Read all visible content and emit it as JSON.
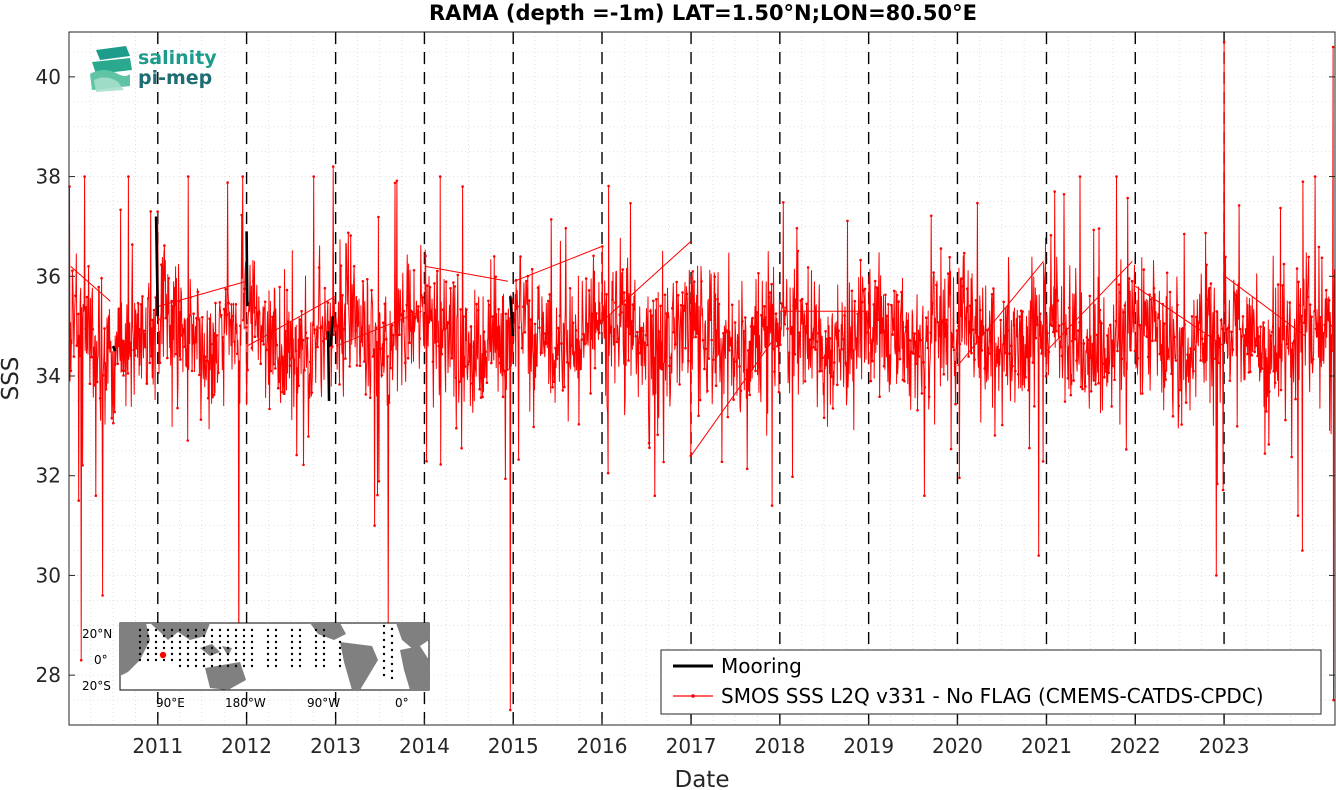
{
  "chart_data": {
    "type": "line",
    "title": "RAMA (depth =-1m) LAT=1.50°N;LON=80.50°E",
    "xlabel": "Date",
    "ylabel": "SSS",
    "xlim": [
      "2010-01-01",
      "2024-04-01"
    ],
    "ylim": [
      27.0,
      40.9
    ],
    "yticks": [
      28,
      30,
      32,
      34,
      36,
      38,
      40
    ],
    "ytick_labels": [
      "28",
      "30",
      "32",
      "34",
      "36",
      "38",
      "40"
    ],
    "xticks": [
      "2011",
      "2012",
      "2013",
      "2014",
      "2015",
      "2016",
      "2017",
      "2018",
      "2019",
      "2020",
      "2021",
      "2022",
      "2023"
    ],
    "grid": true,
    "legend_position": "bottom-right",
    "series": [
      {
        "name": "Mooring",
        "color": "#000000",
        "style": "thick-line",
        "points": [
          [
            "2010-07-01",
            34.6
          ],
          [
            "2010-07-10",
            34.5
          ],
          [
            "2010-12-25",
            37.2
          ],
          [
            "2011-01-01",
            35.2
          ],
          [
            "2012-01-01",
            36.9
          ],
          [
            "2012-01-04",
            35.4
          ],
          [
            "2012-12-01",
            34.9
          ],
          [
            "2012-12-05",
            33.5
          ],
          [
            "2012-12-12",
            34.6
          ],
          [
            "2012-12-20",
            35.2
          ],
          [
            "2014-12-20",
            35.6
          ],
          [
            "2014-12-31",
            34.8
          ]
        ]
      },
      {
        "name": "SMOS SSS L2Q v331 - No FLAG  (CMEMS-CATDS-CPDC)",
        "color": "#ff0000",
        "style": "thin-line-with-dots",
        "sample_interval_days": 2,
        "baseline_mean": 34.8,
        "noise_amplitude": 1.35,
        "extremes": [
          [
            "2010-01-03",
            37.8
          ],
          [
            "2010-02-10",
            31.5
          ],
          [
            "2010-02-20",
            28.3
          ],
          [
            "2010-05-20",
            29.6
          ],
          [
            "2011-01-01",
            37.3
          ],
          [
            "2011-12-01",
            27.8
          ],
          [
            "2012-12-22",
            38.2
          ],
          [
            "2013-06-10",
            31.0
          ],
          [
            "2013-08-05",
            28.9
          ],
          [
            "2014-12-20",
            27.3
          ],
          [
            "2016-01-02",
            36.6
          ],
          [
            "2016-12-31",
            32.4
          ],
          [
            "2017-12-01",
            31.4
          ],
          [
            "2020-12-01",
            30.4
          ],
          [
            "2022-12-01",
            30.0
          ],
          [
            "2023-01-01",
            40.7
          ],
          [
            "2023-11-01",
            31.2
          ],
          [
            "2023-11-20",
            30.5
          ],
          [
            "2024-01-10",
            38.0
          ],
          [
            "2024-03-25",
            40.6
          ],
          [
            "2024-03-27",
            27.5
          ]
        ],
        "gap_lines": [
          [
            [
              "2010-01-08",
              36.2
            ],
            [
              "2010-06-20",
              35.5
            ]
          ],
          [
            [
              "2011-01-05",
              35.4
            ],
            [
              "2012-01-01",
              35.9
            ]
          ],
          [
            [
              "2012-01-03",
              34.6
            ],
            [
              "2013-01-01",
              35.6
            ]
          ],
          [
            [
              "2013-01-03",
              34.6
            ],
            [
              "2013-12-20",
              35.3
            ]
          ],
          [
            [
              "2014-01-05",
              36.2
            ],
            [
              "2014-12-10",
              35.9
            ]
          ],
          [
            [
              "2015-01-05",
              35.9
            ],
            [
              "2016-01-01",
              36.6
            ]
          ],
          [
            [
              "2016-01-03",
              35.1
            ],
            [
              "2016-12-31",
              36.7
            ]
          ],
          [
            [
              "2017-01-01",
              32.4
            ],
            [
              "2017-12-01",
              34.7
            ]
          ],
          [
            [
              "2018-01-01",
              35.3
            ],
            [
              "2019-01-01",
              35.3
            ]
          ],
          [
            [
              "2020-01-01",
              34.2
            ],
            [
              "2020-12-20",
              36.3
            ]
          ],
          [
            [
              "2021-01-01",
              34.5
            ],
            [
              "2021-12-20",
              36.3
            ]
          ],
          [
            [
              "2022-01-01",
              35.8
            ],
            [
              "2023-01-01",
              34.6
            ]
          ],
          [
            [
              "2023-01-05",
              36.0
            ],
            [
              "2023-12-01",
              34.8
            ]
          ]
        ]
      }
    ],
    "inset_map": {
      "lat_tick_labels": [
        "20°N",
        "0°",
        "20°S"
      ],
      "lon_tick_labels": [
        "90°E",
        "180°W",
        "90°W",
        "0°"
      ],
      "highlight_color": "#ff0000"
    }
  },
  "logo": {
    "line1": "salinity",
    "line2": "pi-mep",
    "color1": "#1d9c8c",
    "color2": "#1f6d74"
  },
  "legend": {
    "mooring_label": "Mooring",
    "smos_label": "SMOS SSS L2Q v331 - No FLAG  (CMEMS-CATDS-CPDC)"
  }
}
